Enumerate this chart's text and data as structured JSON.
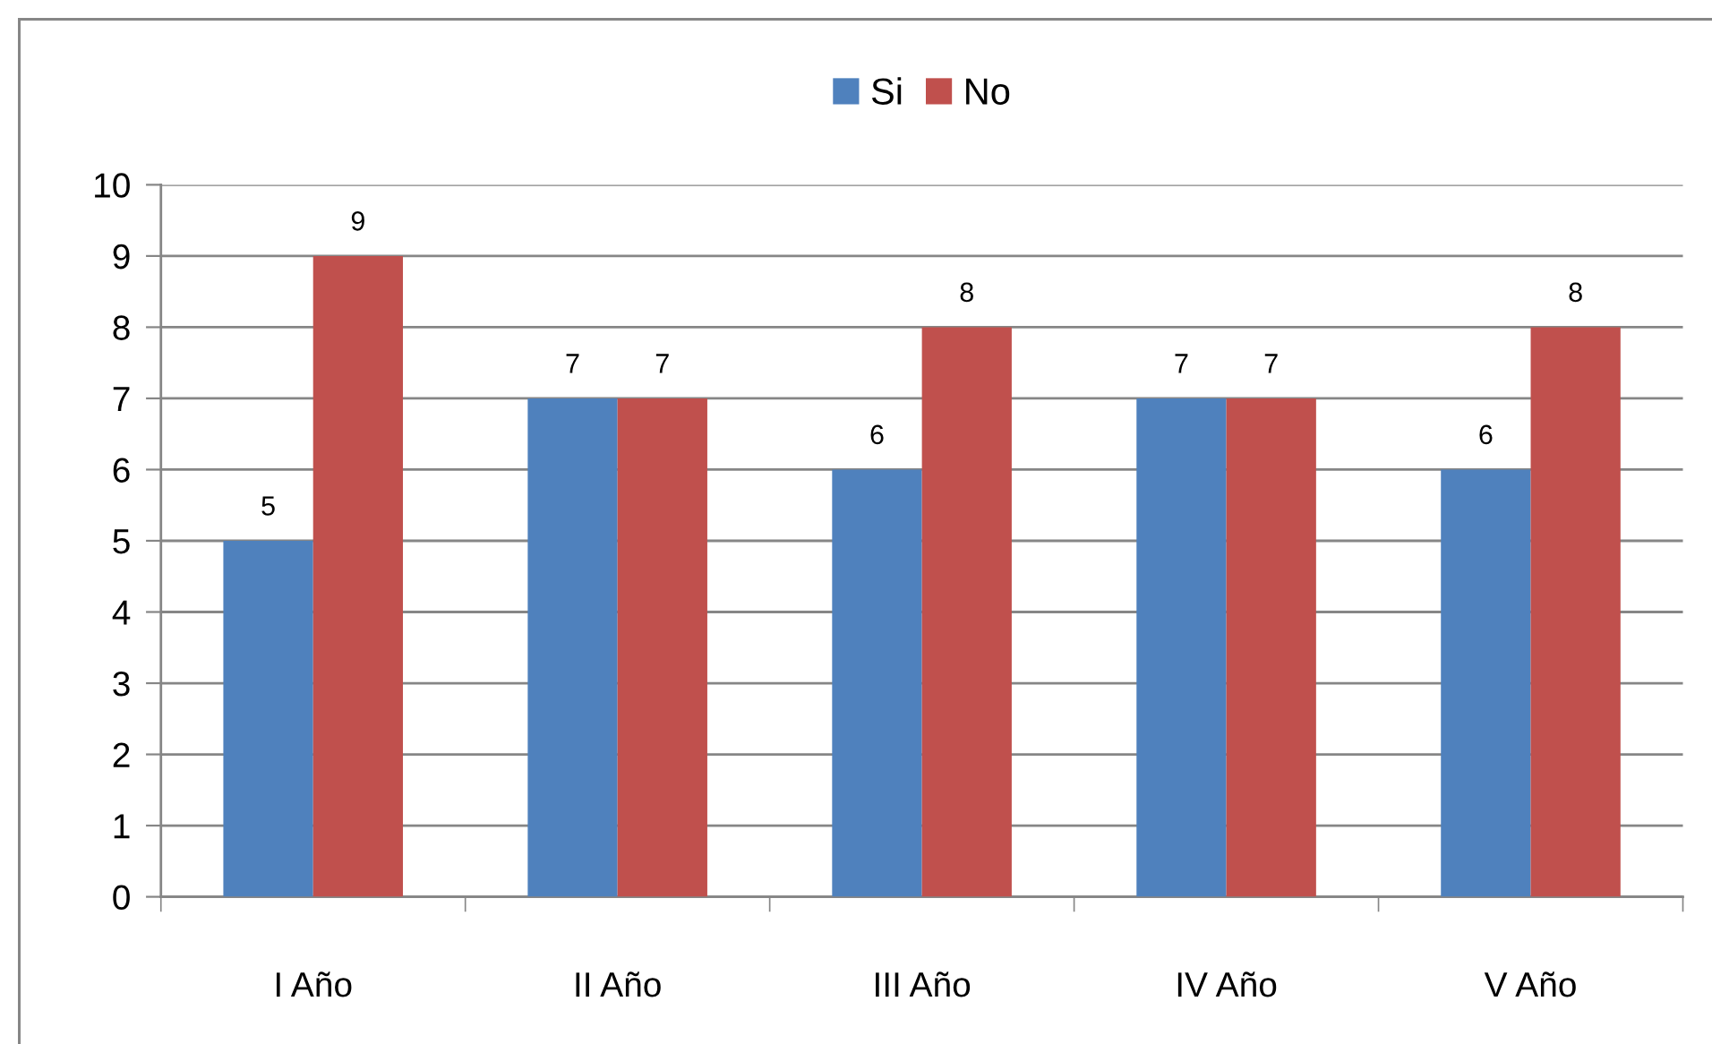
{
  "chart_data": {
    "type": "bar",
    "categories": [
      "I Año",
      "II Año",
      "III Año",
      "IV Año",
      "V Año"
    ],
    "series": [
      {
        "name": "Si",
        "color": "#4f81bd",
        "values": [
          5,
          7,
          6,
          7,
          6
        ]
      },
      {
        "name": "No",
        "color": "#c0504d",
        "values": [
          9,
          7,
          8,
          7,
          8
        ]
      }
    ],
    "ylim": [
      0,
      10
    ],
    "yticks": [
      0,
      1,
      2,
      3,
      4,
      5,
      6,
      7,
      8,
      9,
      10
    ],
    "grid": "y",
    "legend": "top",
    "data_labels": true
  }
}
